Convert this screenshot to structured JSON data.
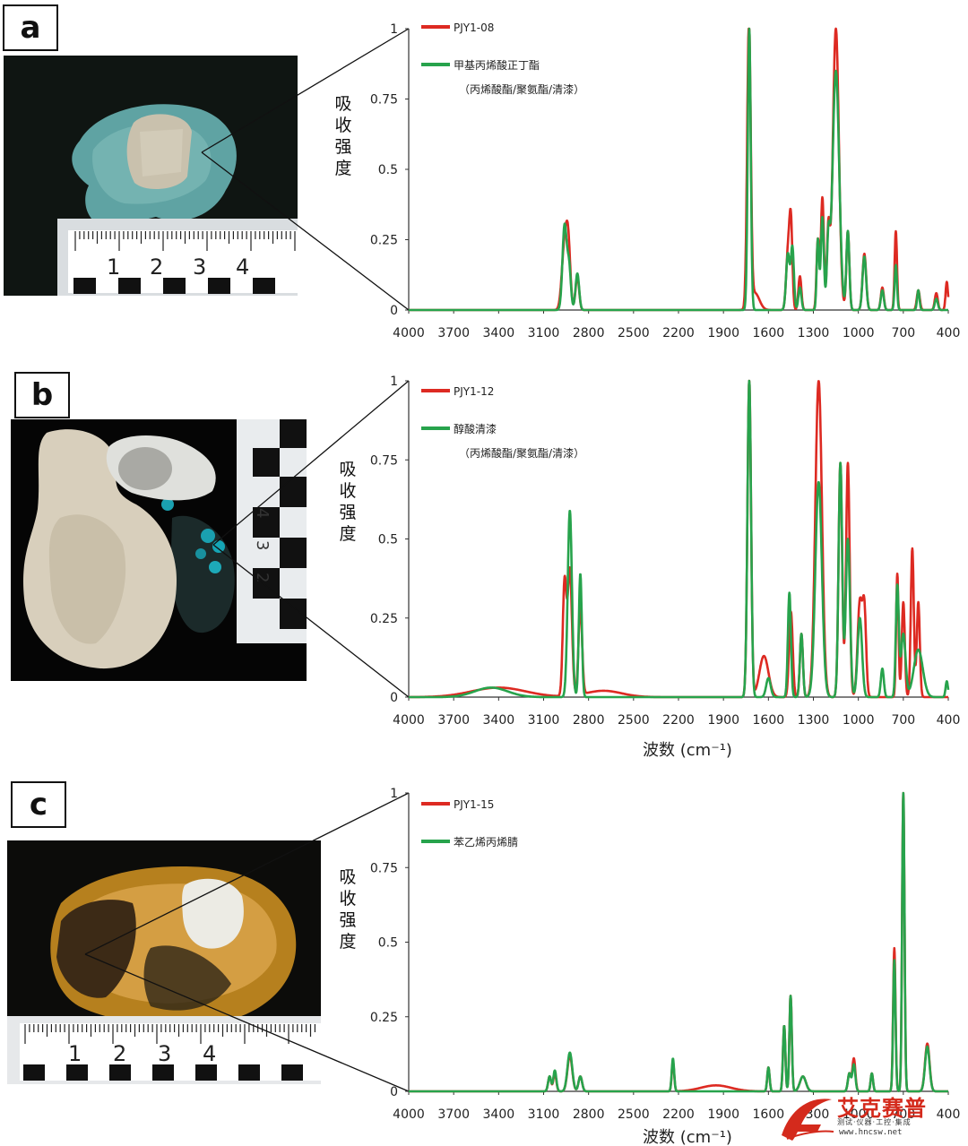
{
  "panels": [
    {
      "letter": "a",
      "photo": {
        "background": "#0f1512",
        "scale_numbers": [
          "1",
          "2",
          "3",
          "4"
        ]
      },
      "chart_data": {
        "type": "line",
        "ylabel": "吸收强度",
        "xlabel": "",
        "xlim": [
          4000,
          400
        ],
        "ylim": [
          0,
          1
        ],
        "x_ticks": [
          "4000",
          "3700",
          "3400",
          "3100",
          "2800",
          "2500",
          "2200",
          "1900",
          "1600",
          "1300",
          "1000",
          "700",
          "400"
        ],
        "y_ticks": [
          "0",
          "0.25",
          "0.5",
          "0.75",
          "1"
        ],
        "legend": [
          {
            "label": "PJY1-08",
            "color": "#dd2a22"
          },
          {
            "label": "甲基丙烯酸正丁酯",
            "color": "#27a34c"
          },
          {
            "label": "（丙烯酸酯/聚氨酯/清漆）",
            "color": ""
          }
        ],
        "series": [
          {
            "name": "PJY1-08",
            "color": "#dd2a22",
            "baseline": 0.0,
            "peaks": [
              [
                2960,
                0.23,
                18
              ],
              [
                2935,
                0.2,
                14
              ],
              [
                2875,
                0.12,
                12
              ],
              [
                1730,
                1.0,
                12
              ],
              [
                1690,
                0.06,
                30
              ],
              [
                1470,
                0.2,
                12
              ],
              [
                1450,
                0.3,
                10
              ],
              [
                1390,
                0.12,
                10
              ],
              [
                1270,
                0.25,
                9
              ],
              [
                1240,
                0.4,
                10
              ],
              [
                1200,
                0.28,
                10
              ],
              [
                1150,
                1.0,
                20
              ],
              [
                1070,
                0.28,
                10
              ],
              [
                960,
                0.2,
                12
              ],
              [
                840,
                0.08,
                10
              ],
              [
                750,
                0.28,
                8
              ],
              [
                600,
                0.07,
                10
              ],
              [
                480,
                0.06,
                10
              ],
              [
                410,
                0.1,
                8
              ]
            ]
          },
          {
            "name": "甲基丙烯酸正丁酯",
            "color": "#27a34c",
            "baseline": 0.0,
            "peaks": [
              [
                2960,
                0.3,
                14
              ],
              [
                2930,
                0.15,
                12
              ],
              [
                2875,
                0.13,
                12
              ],
              [
                1728,
                1.0,
                10
              ],
              [
                1470,
                0.2,
                12
              ],
              [
                1440,
                0.22,
                10
              ],
              [
                1390,
                0.08,
                10
              ],
              [
                1270,
                0.25,
                8
              ],
              [
                1240,
                0.33,
                10
              ],
              [
                1200,
                0.24,
                10
              ],
              [
                1150,
                0.85,
                22
              ],
              [
                1070,
                0.28,
                10
              ],
              [
                960,
                0.19,
                12
              ],
              [
                840,
                0.07,
                10
              ],
              [
                750,
                0.16,
                8
              ],
              [
                600,
                0.07,
                8
              ],
              [
                480,
                0.04,
                10
              ]
            ]
          }
        ]
      }
    },
    {
      "letter": "b",
      "photo": {
        "background": "#050505",
        "scale_numbers": [
          "4",
          "3",
          "2"
        ]
      },
      "chart_data": {
        "type": "line",
        "ylabel": "吸收强度",
        "xlabel": "波数 (cm⁻¹)",
        "xlim": [
          4000,
          400
        ],
        "ylim": [
          0,
          1
        ],
        "x_ticks": [
          "4000",
          "3700",
          "3400",
          "3100",
          "2800",
          "2500",
          "2200",
          "1900",
          "1600",
          "1300",
          "1000",
          "700",
          "400"
        ],
        "y_ticks": [
          "0",
          "0.25",
          "0.5",
          "0.75",
          "1"
        ],
        "legend": [
          {
            "label": "PJY1-12",
            "color": "#dd2a22"
          },
          {
            "label": "醇酸清漆",
            "color": "#27a34c"
          },
          {
            "label": "（丙烯酸酯/聚氨酯/清漆）",
            "color": ""
          }
        ],
        "series": [
          {
            "name": "PJY1-12",
            "color": "#dd2a22",
            "baseline": 0.0,
            "peaks": [
              [
                3400,
                0.03,
                180
              ],
              [
                2960,
                0.36,
                12
              ],
              [
                2925,
                0.4,
                14
              ],
              [
                2855,
                0.28,
                12
              ],
              [
                2700,
                0.02,
                120
              ],
              [
                1728,
                1.0,
                12
              ],
              [
                1630,
                0.13,
                30
              ],
              [
                1450,
                0.27,
                12
              ],
              [
                1380,
                0.2,
                10
              ],
              [
                1265,
                1.0,
                22
              ],
              [
                1120,
                0.74,
                12
              ],
              [
                1070,
                0.74,
                12
              ],
              [
                990,
                0.3,
                15
              ],
              [
                960,
                0.27,
                12
              ],
              [
                740,
                0.39,
                8
              ],
              [
                700,
                0.3,
                10
              ],
              [
                640,
                0.47,
                10
              ],
              [
                600,
                0.3,
                10
              ]
            ]
          },
          {
            "name": "醇酸清漆",
            "color": "#27a34c",
            "baseline": 0.0,
            "peaks": [
              [
                3450,
                0.03,
                110
              ],
              [
                2925,
                0.59,
                14
              ],
              [
                2855,
                0.39,
                10
              ],
              [
                1728,
                1.0,
                12
              ],
              [
                1600,
                0.06,
                15
              ],
              [
                1460,
                0.33,
                10
              ],
              [
                1380,
                0.2,
                10
              ],
              [
                1265,
                0.68,
                22
              ],
              [
                1120,
                0.74,
                12
              ],
              [
                1070,
                0.5,
                14
              ],
              [
                990,
                0.25,
                15
              ],
              [
                840,
                0.09,
                10
              ],
              [
                740,
                0.35,
                10
              ],
              [
                700,
                0.2,
                15
              ],
              [
                600,
                0.15,
                30
              ],
              [
                410,
                0.05,
                8
              ]
            ]
          }
        ]
      }
    },
    {
      "letter": "c",
      "photo": {
        "background": "#0c0c0a",
        "scale_numbers": [
          "1",
          "2",
          "3",
          "4"
        ]
      },
      "chart_data": {
        "type": "line",
        "ylabel": "吸收强度",
        "xlabel": "波数 (cm⁻¹)",
        "xlim": [
          4000,
          400
        ],
        "ylim": [
          0,
          1
        ],
        "x_ticks": [
          "4000",
          "3700",
          "3400",
          "3100",
          "2800",
          "2500",
          "2200",
          "1900",
          "1600",
          "1300",
          "1000",
          "700",
          "400"
        ],
        "y_ticks": [
          "0",
          "0.25",
          "0.5",
          "0.75",
          "1"
        ],
        "legend": [
          {
            "label": "PJY1-15",
            "color": "#dd2a22"
          },
          {
            "label": "苯乙烯丙烯腈",
            "color": "#27a34c"
          }
        ],
        "series": [
          {
            "name": "PJY1-15",
            "color": "#dd2a22",
            "baseline": 0.0,
            "peaks": [
              [
                3060,
                0.05,
                10
              ],
              [
                3025,
                0.06,
                10
              ],
              [
                2925,
                0.12,
                16
              ],
              [
                2855,
                0.05,
                12
              ],
              [
                2237,
                0.1,
                8
              ],
              [
                1950,
                0.02,
                100
              ],
              [
                1600,
                0.08,
                8
              ],
              [
                1495,
                0.22,
                8
              ],
              [
                1452,
                0.32,
                8
              ],
              [
                1370,
                0.05,
                20
              ],
              [
                1060,
                0.06,
                10
              ],
              [
                1030,
                0.11,
                10
              ],
              [
                910,
                0.06,
                8
              ],
              [
                760,
                0.48,
                8
              ],
              [
                700,
                1.0,
                8
              ],
              [
                540,
                0.16,
                15
              ]
            ]
          },
          {
            "name": "苯乙烯丙烯腈",
            "color": "#27a34c",
            "baseline": 0.0,
            "peaks": [
              [
                3060,
                0.05,
                10
              ],
              [
                3025,
                0.07,
                10
              ],
              [
                2925,
                0.13,
                16
              ],
              [
                2855,
                0.05,
                12
              ],
              [
                2237,
                0.11,
                8
              ],
              [
                1600,
                0.08,
                8
              ],
              [
                1495,
                0.22,
                8
              ],
              [
                1452,
                0.32,
                8
              ],
              [
                1370,
                0.05,
                20
              ],
              [
                1060,
                0.06,
                10
              ],
              [
                1030,
                0.09,
                10
              ],
              [
                910,
                0.06,
                8
              ],
              [
                760,
                0.44,
                8
              ],
              [
                700,
                1.0,
                8
              ],
              [
                540,
                0.15,
                15
              ]
            ]
          }
        ]
      }
    }
  ],
  "logo": {
    "brand": "艾克赛普",
    "sub": "测试·仪器·工控·集成",
    "url": "www.hncsw.net"
  }
}
